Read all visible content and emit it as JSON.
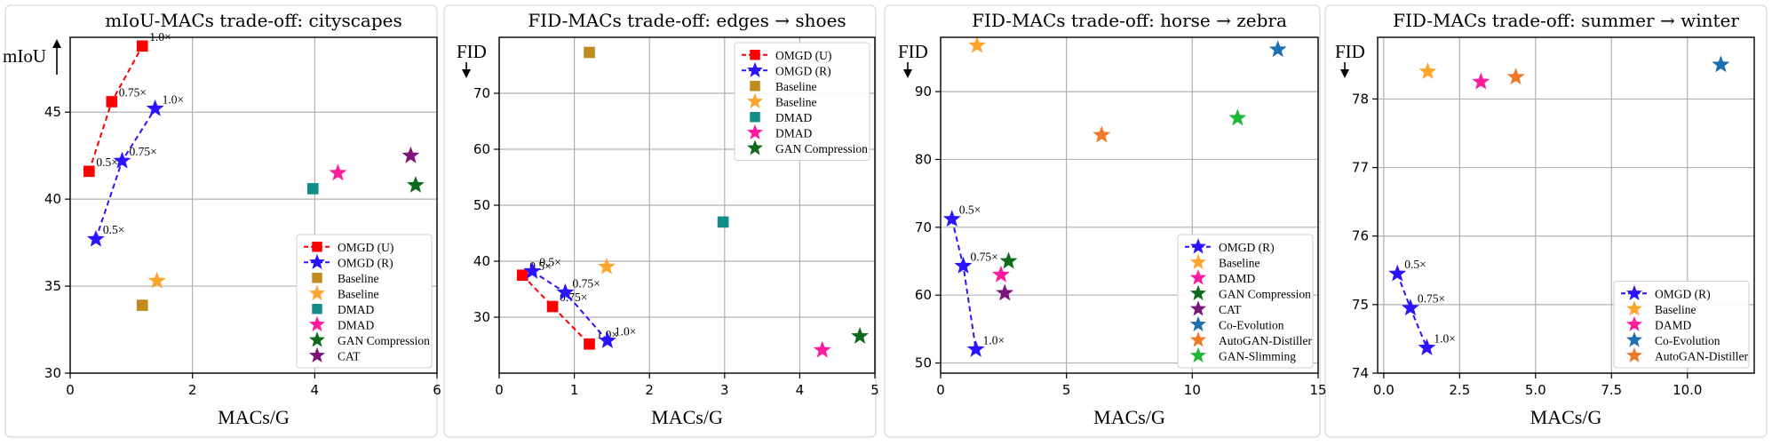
{
  "chart_data": [
    {
      "type": "scatter",
      "title": "mIoU-MACs trade-off: cityscapes",
      "xlabel": "MACs/G",
      "ylabel": "mIoU",
      "ylabel_arrow": "up",
      "xlim": [
        0,
        6
      ],
      "ylim": [
        30,
        49.3
      ],
      "xticks": [
        0,
        2,
        4,
        6
      ],
      "yticks": [
        30,
        35,
        40,
        45
      ],
      "grid": true,
      "legend_position": "lower-right",
      "series": [
        {
          "name": "OMGD (U)",
          "marker": "square",
          "color": "#ff0000",
          "line": "dashed",
          "x": [
            0.31,
            0.68,
            1.18
          ],
          "y": [
            41.6,
            45.6,
            48.8
          ],
          "labels": [
            "0.5×",
            "0.75×",
            "1.0×"
          ]
        },
        {
          "name": "OMGD (R)",
          "marker": "star",
          "color": "#2a14ff",
          "line": "dashed",
          "x": [
            0.42,
            0.85,
            1.39
          ],
          "y": [
            37.7,
            42.2,
            45.2
          ],
          "labels": [
            "0.5×",
            "0.75×",
            "1.0×"
          ]
        },
        {
          "name": "Baseline",
          "marker": "square",
          "color": "#c08a1e",
          "x": [
            1.18
          ],
          "y": [
            33.9
          ]
        },
        {
          "name": "Baseline",
          "marker": "star",
          "color": "#ffa52c",
          "x": [
            1.42
          ],
          "y": [
            35.3
          ]
        },
        {
          "name": "DMAD",
          "marker": "square",
          "color": "#158c8c",
          "x": [
            3.97
          ],
          "y": [
            40.6
          ]
        },
        {
          "name": "DMAD",
          "marker": "star",
          "color": "#ff1a9e",
          "x": [
            4.38
          ],
          "y": [
            41.5
          ]
        },
        {
          "name": "GAN Compression",
          "marker": "star",
          "color": "#0e6b1c",
          "x": [
            5.65
          ],
          "y": [
            40.8
          ]
        },
        {
          "name": "CAT",
          "marker": "star",
          "color": "#7d167a",
          "x": [
            5.57
          ],
          "y": [
            42.5
          ]
        }
      ]
    },
    {
      "type": "scatter",
      "title": "FID-MACs trade-off: edges → shoes",
      "xlabel": "MACs/G",
      "ylabel": "FID",
      "ylabel_arrow": "down",
      "xlim": [
        0,
        5
      ],
      "ylim": [
        20,
        80
      ],
      "xticks": [
        0,
        1,
        2,
        3,
        4,
        5
      ],
      "yticks": [
        30,
        40,
        50,
        60,
        70
      ],
      "grid": true,
      "legend_position": "upper-right",
      "series": [
        {
          "name": "OMGD (U)",
          "marker": "square",
          "color": "#ff0000",
          "line": "dashed",
          "x": [
            0.31,
            0.71,
            1.2
          ],
          "y": [
            37.5,
            31.9,
            25.2
          ],
          "labels": [
            "0.5×",
            "0.75×",
            "1.0×"
          ]
        },
        {
          "name": "OMGD (R)",
          "marker": "star",
          "color": "#2a14ff",
          "line": "dashed",
          "x": [
            0.44,
            0.88,
            1.44
          ],
          "y": [
            38.2,
            34.4,
            25.8
          ],
          "labels": [
            "0.5×",
            "0.75×",
            "1.0×"
          ]
        },
        {
          "name": "Baseline",
          "marker": "square",
          "color": "#c08a1e",
          "x": [
            1.2
          ],
          "y": [
            77.3
          ]
        },
        {
          "name": "Baseline",
          "marker": "star",
          "color": "#ffa52c",
          "x": [
            1.43
          ],
          "y": [
            39.0
          ]
        },
        {
          "name": "DMAD",
          "marker": "square",
          "color": "#158c8c",
          "x": [
            2.98
          ],
          "y": [
            47.0
          ]
        },
        {
          "name": "DMAD",
          "marker": "star",
          "color": "#ff1a9e",
          "x": [
            4.3
          ],
          "y": [
            24.1
          ]
        },
        {
          "name": "GAN Compression",
          "marker": "star",
          "color": "#0e6b1c",
          "x": [
            4.8
          ],
          "y": [
            26.6
          ]
        }
      ]
    },
    {
      "type": "scatter",
      "title": "FID-MACs trade-off: horse → zebra",
      "xlabel": "MACs/G",
      "ylabel": "FID",
      "ylabel_arrow": "down",
      "xlim": [
        0,
        15
      ],
      "ylim": [
        48.5,
        98
      ],
      "xticks": [
        0,
        5,
        10,
        15
      ],
      "yticks": [
        50,
        60,
        70,
        80,
        90
      ],
      "grid": true,
      "legend_position": "lower-right",
      "series": [
        {
          "name": "OMGD (R)",
          "marker": "star",
          "color": "#2a14ff",
          "line": "dashed",
          "x": [
            0.45,
            0.9,
            1.4
          ],
          "y": [
            71.2,
            64.3,
            52.0
          ],
          "labels": [
            "0.5×",
            "0.75×",
            "1.0×"
          ]
        },
        {
          "name": "Baseline",
          "marker": "star",
          "color": "#ffa52c",
          "x": [
            1.45
          ],
          "y": [
            96.8
          ]
        },
        {
          "name": "DAMD",
          "marker": "star",
          "color": "#ff1a9e",
          "x": [
            2.4
          ],
          "y": [
            63.0
          ]
        },
        {
          "name": "GAN Compression",
          "marker": "star",
          "color": "#0e6b1c",
          "x": [
            2.7
          ],
          "y": [
            65.0
          ]
        },
        {
          "name": "CAT",
          "marker": "star",
          "color": "#7d167a",
          "x": [
            2.55
          ],
          "y": [
            60.3
          ]
        },
        {
          "name": "Co-Evolution",
          "marker": "star",
          "color": "#1c6fb0",
          "x": [
            13.4
          ],
          "y": [
            96.2
          ]
        },
        {
          "name": "AutoGAN-Distiller",
          "marker": "star",
          "color": "#f07828",
          "x": [
            6.4
          ],
          "y": [
            83.6
          ]
        },
        {
          "name": "GAN-Slimming",
          "marker": "star",
          "color": "#1fb833",
          "x": [
            11.8
          ],
          "y": [
            86.1
          ]
        }
      ]
    },
    {
      "type": "scatter",
      "title": "FID-MACs trade-off: summer → winter",
      "xlabel": "MACs/G",
      "ylabel": "FID",
      "ylabel_arrow": "down",
      "xlim": [
        -0.2,
        12.2
      ],
      "ylim": [
        74,
        78.9
      ],
      "xticks": [
        0.0,
        2.5,
        5.0,
        7.5,
        10.0
      ],
      "xticklabels": [
        "0.0",
        "2.5",
        "5.0",
        "7.5",
        "10.0"
      ],
      "yticks": [
        74,
        75,
        76,
        77,
        78
      ],
      "grid": true,
      "legend_position": "lower-right",
      "series": [
        {
          "name": "OMGD (R)",
          "marker": "star",
          "color": "#2a14ff",
          "line": "dashed",
          "x": [
            0.45,
            0.88,
            1.42
          ],
          "y": [
            75.45,
            74.95,
            74.37
          ],
          "labels": [
            "0.5×",
            "0.75×",
            "1.0×"
          ]
        },
        {
          "name": "Baseline",
          "marker": "star",
          "color": "#ffa52c",
          "x": [
            1.45
          ],
          "y": [
            78.4
          ]
        },
        {
          "name": "DAMD",
          "marker": "star",
          "color": "#ff1a9e",
          "x": [
            3.2
          ],
          "y": [
            78.25
          ]
        },
        {
          "name": "Co-Evolution",
          "marker": "star",
          "color": "#1c6fb0",
          "x": [
            11.1
          ],
          "y": [
            78.5
          ]
        },
        {
          "name": "AutoGAN-Distiller",
          "marker": "star",
          "color": "#f07828",
          "x": [
            4.35
          ],
          "y": [
            78.32
          ]
        }
      ]
    }
  ]
}
